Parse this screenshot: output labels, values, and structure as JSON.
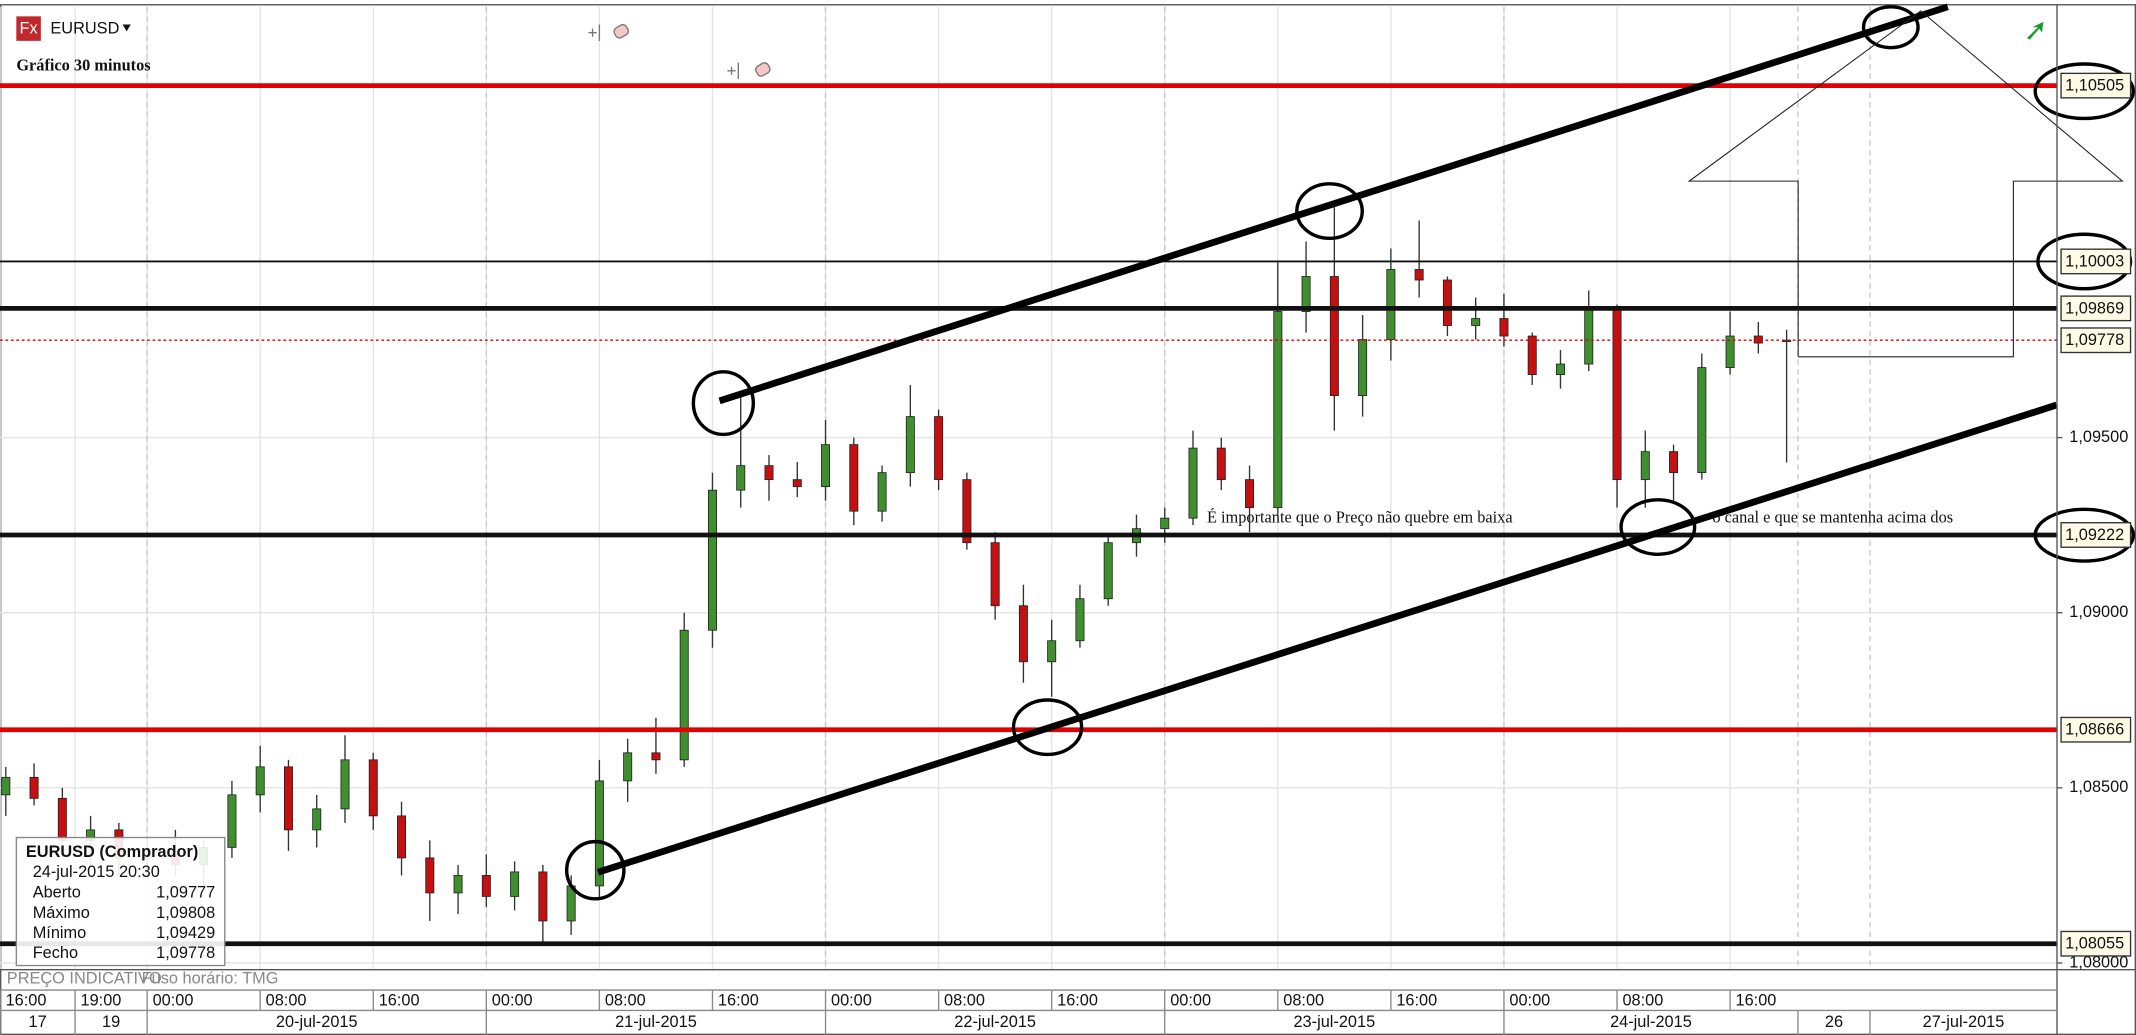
{
  "toolbar": {
    "icon": "Fx",
    "symbol": "EURUSD",
    "notice": "PREÇO INDICATIVO",
    "timezone": "Fuso horário: TMG"
  },
  "annotations": [
    "É importante que o Preço não quebre em baixa",
    "o canal e que se mantenha acima dos"
  ],
  "info_box": {
    "title": "EURUSD (Comprador)",
    "date": "24-jul-2015 20:30",
    "rows": [
      [
        "Aberto",
        "1,09777"
      ],
      [
        "Máximo",
        "1,09808"
      ],
      [
        "Mínimo",
        "1,09429"
      ],
      [
        "Fecho",
        "1,09778"
      ]
    ]
  },
  "chart_data": {
    "type": "candlestick",
    "title": "Gráfico 30 minutos",
    "xlim": [
      -10.41,
      135.13
    ],
    "ylim": [
      1.07981,
      1.1073
    ],
    "yticks": [
      {
        "value": 1.08,
        "label": "1,08000"
      },
      {
        "value": 1.085,
        "label": "1,08500"
      },
      {
        "value": 1.09,
        "label": "1,09000"
      },
      {
        "value": 1.095,
        "label": "1,09500"
      }
    ],
    "xticks": [
      {
        "value": -10.4,
        "label": "16:00"
      },
      {
        "value": -5.1,
        "label": "19:00"
      },
      {
        "value": 0,
        "label": "00:00"
      },
      {
        "value": 8,
        "label": "08:00"
      },
      {
        "value": 16,
        "label": "16:00"
      },
      {
        "value": 24,
        "label": "00:00"
      },
      {
        "value": 32,
        "label": "08:00"
      },
      {
        "value": 40,
        "label": "16:00"
      },
      {
        "value": 48,
        "label": "00:00"
      },
      {
        "value": 56,
        "label": "08:00"
      },
      {
        "value": 64,
        "label": "16:00"
      },
      {
        "value": 72,
        "label": "00:00"
      },
      {
        "value": 80,
        "label": "08:00"
      },
      {
        "value": 88,
        "label": "16:00"
      },
      {
        "value": 96,
        "label": "00:00"
      },
      {
        "value": 104,
        "label": "08:00"
      },
      {
        "value": 112,
        "label": "16:00"
      }
    ],
    "date_ticks": [
      {
        "value": -10.4,
        "label": "17"
      },
      {
        "value": -5.1,
        "label": "19"
      },
      {
        "value": 0,
        "label": "20-jul-2015"
      },
      {
        "value": 24,
        "label": "21-jul-2015"
      },
      {
        "value": 48,
        "label": "22-jul-2015"
      },
      {
        "value": 72,
        "label": "23-jul-2015"
      },
      {
        "value": 96,
        "label": "24-jul-2015"
      },
      {
        "value": 116.8,
        "label": "26"
      },
      {
        "value": 121.9,
        "label": "27-jul-2015"
      }
    ],
    "grid": true,
    "up_color": "#3f8f2f",
    "down_color": "#c41010",
    "levels": [
      {
        "value": 1.10505,
        "label": "1,10505",
        "color": "#e00000",
        "style": "thick"
      },
      {
        "value": 1.10003,
        "label": "1,10003",
        "color": "#111111",
        "style": "thin"
      },
      {
        "value": 1.09869,
        "label": "1,09869",
        "color": "#111111",
        "style": "thick"
      },
      {
        "value": 1.09778,
        "label": "1,09778",
        "color": "#e00000",
        "style": "dotted"
      },
      {
        "value": 1.09222,
        "label": "1,09222",
        "color": "#111111",
        "style": "thick"
      },
      {
        "value": 1.08666,
        "label": "1,08666",
        "color": "#e00000",
        "style": "thick"
      },
      {
        "value": 1.08055,
        "label": "1,08055",
        "color": "#111111",
        "style": "thick"
      }
    ],
    "trend_lines": [
      {
        "x": [
          40.5,
          127.4
        ],
        "y": [
          1.09605,
          1.1073
        ]
      },
      {
        "x": [
          31.9,
          135.1
        ],
        "y": [
          1.08259,
          1.09593
        ]
      }
    ],
    "x": [
      -10,
      -8,
      -6,
      -4,
      -2,
      0,
      2,
      4,
      6,
      8,
      10,
      12,
      14,
      16,
      18,
      20,
      22,
      24,
      26,
      28,
      30,
      32,
      34,
      36,
      38,
      40,
      42,
      44,
      46,
      48,
      50,
      52,
      54,
      56,
      58,
      60,
      62,
      64,
      66,
      68,
      70,
      72,
      74,
      76,
      78,
      80,
      82,
      84,
      86,
      88,
      90,
      92,
      94,
      96,
      98,
      100,
      102,
      104,
      106,
      108,
      110,
      112,
      114,
      116
    ],
    "open": [
      1.0848,
      1.0853,
      1.0847,
      1.0835,
      1.0838,
      1.083,
      1.0832,
      1.0828,
      1.0833,
      1.0848,
      1.0856,
      1.0838,
      1.0844,
      1.0858,
      1.0842,
      1.083,
      1.082,
      1.0825,
      1.0819,
      1.0826,
      1.0812,
      1.0822,
      1.0852,
      1.086,
      1.0858,
      1.0895,
      1.0935,
      1.0942,
      1.0938,
      1.0936,
      1.0948,
      1.0929,
      1.094,
      1.0956,
      1.0938,
      1.092,
      1.0902,
      1.0886,
      1.0892,
      1.0904,
      1.092,
      1.0924,
      1.0927,
      1.0947,
      1.0938,
      1.093,
      1.0986,
      1.0996,
      1.0962,
      1.0978,
      1.0998,
      1.0995,
      1.0982,
      1.0984,
      1.0979,
      1.0968,
      1.0971,
      1.0987,
      1.0938,
      1.0946,
      1.094,
      1.097,
      1.0979,
      1.09777
    ],
    "high": [
      1.0856,
      1.0857,
      1.085,
      1.0842,
      1.084,
      1.0836,
      1.0838,
      1.0835,
      1.0852,
      1.0862,
      1.0858,
      1.0848,
      1.0865,
      1.086,
      1.0846,
      1.0835,
      1.0828,
      1.0831,
      1.0829,
      1.0828,
      1.0825,
      1.0858,
      1.0864,
      1.087,
      1.09,
      1.094,
      1.0962,
      1.0945,
      1.0943,
      1.0955,
      1.095,
      1.0942,
      1.0965,
      1.0958,
      1.094,
      1.0923,
      1.0908,
      1.0898,
      1.0908,
      1.0922,
      1.0928,
      1.093,
      1.0952,
      1.095,
      1.0942,
      1.1,
      1.1006,
      1.1016,
      1.0985,
      1.1004,
      1.1012,
      1.0996,
      1.099,
      1.0991,
      1.098,
      1.0975,
      1.0992,
      1.0988,
      1.0952,
      1.0948,
      1.0974,
      1.0986,
      1.0983,
      1.09808
    ],
    "low": [
      1.0842,
      1.0845,
      1.083,
      1.0828,
      1.0825,
      1.0824,
      1.0825,
      1.0822,
      1.083,
      1.0843,
      1.0832,
      1.0833,
      1.084,
      1.0838,
      1.0825,
      1.0812,
      1.0814,
      1.0816,
      1.0815,
      1.0806,
      1.0808,
      1.0818,
      1.0846,
      1.0854,
      1.0856,
      1.089,
      1.093,
      1.0932,
      1.0933,
      1.0932,
      1.0925,
      1.0926,
      1.0936,
      1.0935,
      1.0918,
      1.0898,
      1.088,
      1.0876,
      1.089,
      1.0902,
      1.0916,
      1.092,
      1.0925,
      1.0935,
      1.0923,
      1.0928,
      1.098,
      1.0952,
      1.0956,
      1.0972,
      1.099,
      1.0979,
      1.0978,
      1.0976,
      1.0965,
      1.0964,
      1.0969,
      1.093,
      1.093,
      1.0932,
      1.0938,
      1.0968,
      1.0974,
      1.09429
    ],
    "close": [
      1.0853,
      1.0847,
      1.0835,
      1.0838,
      1.083,
      1.0832,
      1.0828,
      1.0833,
      1.0848,
      1.0856,
      1.0838,
      1.0844,
      1.0858,
      1.0842,
      1.083,
      1.082,
      1.0825,
      1.0819,
      1.0826,
      1.0812,
      1.0822,
      1.0852,
      1.086,
      1.0858,
      1.0895,
      1.0935,
      1.0942,
      1.0938,
      1.0936,
      1.0948,
      1.0929,
      1.094,
      1.0956,
      1.0938,
      1.092,
      1.0902,
      1.0886,
      1.0892,
      1.0904,
      1.092,
      1.0924,
      1.0927,
      1.0947,
      1.0938,
      1.093,
      1.0986,
      1.0996,
      1.0962,
      1.0978,
      1.0998,
      1.0995,
      1.0982,
      1.0984,
      1.0979,
      1.0968,
      1.0971,
      1.0987,
      1.0938,
      1.0946,
      1.094,
      1.097,
      1.0979,
      1.0977,
      1.09778
    ]
  }
}
